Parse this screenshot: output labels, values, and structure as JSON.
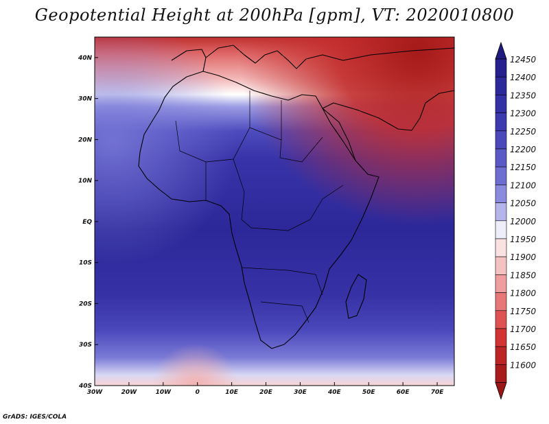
{
  "title": "Geopotential Height at 200hPa [gpm], VT: 2020010800",
  "credit": "GrADS: IGES/COLA",
  "map": {
    "region": "Africa",
    "lon_range": [
      -30,
      75
    ],
    "lat_range": [
      -40,
      45
    ],
    "x_ticks": [
      "30W",
      "20W",
      "10W",
      "0",
      "10E",
      "20E",
      "30E",
      "40E",
      "50E",
      "60E",
      "70E"
    ],
    "x_tick_values": [
      -30,
      -20,
      -10,
      0,
      10,
      20,
      30,
      40,
      50,
      60,
      70
    ],
    "y_ticks": [
      "40N",
      "30N",
      "20N",
      "10N",
      "EQ",
      "10S",
      "20S",
      "30S",
      "40S"
    ],
    "y_tick_values": [
      40,
      30,
      20,
      10,
      0,
      -10,
      -20,
      -30,
      -40
    ]
  },
  "legend": {
    "unit": "gpm",
    "levels": [
      "12450",
      "12400",
      "12350",
      "12300",
      "12250",
      "12200",
      "12150",
      "12100",
      "12050",
      "12000",
      "11950",
      "11900",
      "11850",
      "11800",
      "11750",
      "11700",
      "11650",
      "11600"
    ],
    "colors": [
      "#26208f",
      "#2c2a9a",
      "#3430a6",
      "#3d3ab0",
      "#4a48bb",
      "#5a5ac6",
      "#6e6ed2",
      "#8a8ade",
      "#b5b5ec",
      "#eeeefa",
      "#fbe2e2",
      "#f5c2c2",
      "#ee9e9e",
      "#e67878",
      "#de5252",
      "#d23434",
      "#bd2424",
      "#a81c1c"
    ],
    "top_arrow_color": "#1f1a7e",
    "bottom_arrow_color": "#9a1515"
  }
}
